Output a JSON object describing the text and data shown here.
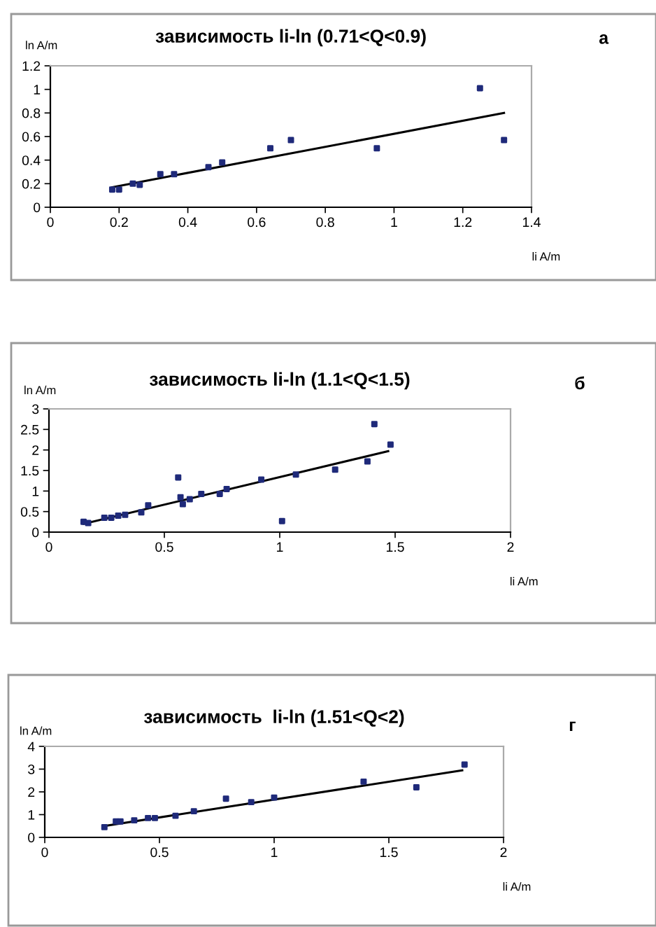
{
  "chart_data": [
    {
      "type": "scatter",
      "title": "зависимость li-ln (0.71<Q<0.9)",
      "xlabel": "li A/m",
      "ylabel": "ln A/m",
      "annotations": [
        "а"
      ],
      "xlim": [
        0,
        1.4
      ],
      "xticks": [
        0,
        0.2,
        0.4,
        0.6,
        0.8,
        1,
        1.2,
        1.4
      ],
      "ylim": [
        0,
        1.2
      ],
      "yticks": [
        0,
        0.2,
        0.4,
        0.6,
        0.8,
        1,
        1.2
      ],
      "grid": false,
      "legend": false,
      "marker": "square",
      "series": [
        {
          "color": "#1f2a7a",
          "x": [
            0.18,
            0.2,
            0.24,
            0.26,
            0.32,
            0.36,
            0.46,
            0.5,
            0.64,
            0.7,
            0.95,
            1.25,
            1.32
          ],
          "values": [
            0.15,
            0.15,
            0.2,
            0.19,
            0.28,
            0.28,
            0.34,
            0.38,
            0.5,
            0.57,
            0.5,
            1.01,
            0.57
          ]
        },
        {
          "type": "line",
          "marker": "none",
          "color": "#000000",
          "x": [
            0.18,
            1.32
          ],
          "values": [
            0.17,
            0.8
          ]
        }
      ]
    },
    {
      "type": "scatter",
      "title": "зависимость li-ln (1.1<Q<1.5)",
      "xlabel": "li A/m",
      "ylabel": "ln A/m",
      "annotations": [
        "б"
      ],
      "xlim": [
        0,
        2
      ],
      "xticks": [
        0,
        0.5,
        1,
        1.5,
        2
      ],
      "ylim": [
        0,
        3
      ],
      "yticks": [
        0,
        0.5,
        1,
        1.5,
        2,
        2.5,
        3
      ],
      "grid": false,
      "legend": false,
      "marker": "square",
      "series": [
        {
          "color": "#1f2a7a",
          "x": [
            0.15,
            0.17,
            0.24,
            0.27,
            0.3,
            0.33,
            0.4,
            0.43,
            0.56,
            0.57,
            0.58,
            0.61,
            0.66,
            0.74,
            0.77,
            0.92,
            1.01,
            1.07,
            1.24,
            1.38,
            1.41,
            1.48
          ],
          "values": [
            0.25,
            0.22,
            0.35,
            0.35,
            0.4,
            0.42,
            0.48,
            0.65,
            1.33,
            0.85,
            0.68,
            0.8,
            0.93,
            0.93,
            1.05,
            1.28,
            0.27,
            1.4,
            1.52,
            1.72,
            2.63,
            2.13
          ]
        },
        {
          "type": "line",
          "marker": "none",
          "color": "#000000",
          "x": [
            0.15,
            1.47
          ],
          "values": [
            0.2,
            1.97
          ]
        }
      ]
    },
    {
      "type": "scatter",
      "title": "зависимость  li-ln (1.51<Q<2)",
      "xlabel": "li A/m",
      "ylabel": "ln A/m",
      "annotations": [
        "г"
      ],
      "xlim": [
        0,
        2
      ],
      "xticks": [
        0,
        0.5,
        1,
        1.5,
        2
      ],
      "ylim": [
        0,
        4
      ],
      "yticks": [
        0,
        1,
        2,
        3,
        4
      ],
      "grid": false,
      "legend": false,
      "marker": "square",
      "series": [
        {
          "color": "#1f2a7a",
          "x": [
            0.26,
            0.31,
            0.33,
            0.39,
            0.45,
            0.48,
            0.57,
            0.65,
            0.79,
            0.9,
            1.0,
            1.39,
            1.62,
            1.83
          ],
          "values": [
            0.45,
            0.7,
            0.7,
            0.75,
            0.85,
            0.85,
            0.95,
            1.15,
            1.7,
            1.55,
            1.75,
            2.45,
            2.2,
            3.2
          ]
        },
        {
          "type": "line",
          "marker": "none",
          "color": "#000000",
          "x": [
            0.26,
            1.82
          ],
          "values": [
            0.5,
            2.95
          ]
        }
      ]
    }
  ]
}
